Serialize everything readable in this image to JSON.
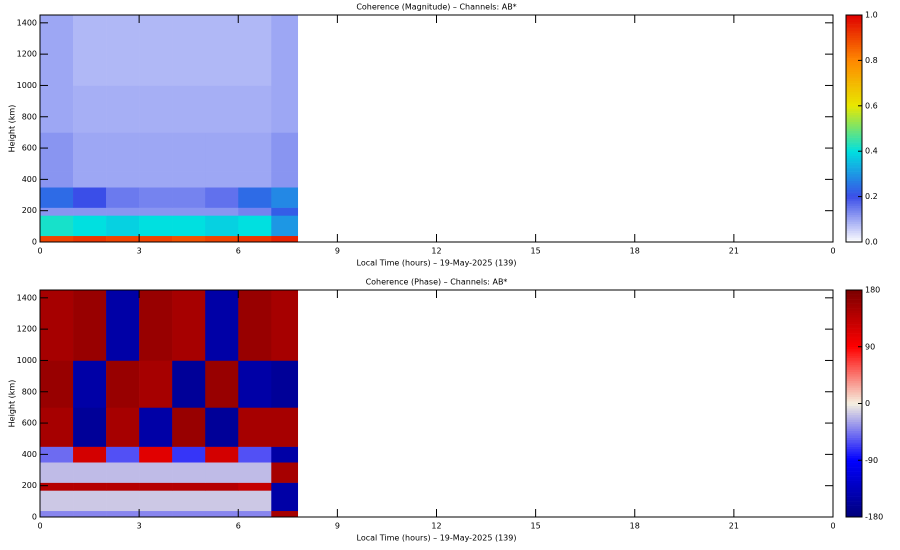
{
  "chart_data": [
    {
      "type": "heatmap",
      "title": "Coherence (Magnitude) – Channels: AB*",
      "xlabel": "Local Time (hours) – 19-May-2025 (139)",
      "ylabel": "Height (km)",
      "x_bins": [
        0,
        1,
        2,
        3,
        4,
        5,
        6,
        7,
        7.8
      ],
      "y_bins": [
        0,
        40,
        170,
        220,
        350,
        450,
        700,
        1000,
        1450
      ],
      "values": [
        [
          0.9,
          0.92,
          0.9,
          0.9,
          0.88,
          0.9,
          0.92,
          0.95
        ],
        [
          0.42,
          0.4,
          0.38,
          0.4,
          0.4,
          0.38,
          0.4,
          0.3
        ],
        [
          0.12,
          0.12,
          0.12,
          0.12,
          0.12,
          0.12,
          0.14,
          0.22
        ],
        [
          0.24,
          0.2,
          0.15,
          0.14,
          0.14,
          0.16,
          0.24,
          0.28
        ],
        [
          0.12,
          0.1,
          0.1,
          0.1,
          0.1,
          0.1,
          0.1,
          0.12
        ],
        [
          0.12,
          0.1,
          0.1,
          0.1,
          0.1,
          0.1,
          0.1,
          0.12
        ],
        [
          0.1,
          0.09,
          0.09,
          0.09,
          0.09,
          0.09,
          0.09,
          0.1
        ],
        [
          0.1,
          0.08,
          0.08,
          0.08,
          0.08,
          0.08,
          0.08,
          0.1
        ]
      ],
      "xlim": [
        0,
        24
      ],
      "xticks": [
        0,
        3,
        6,
        9,
        12,
        15,
        18,
        21,
        {
          "value": 24,
          "label": "0"
        }
      ],
      "ylim": [
        0,
        1450
      ],
      "yticks": [
        0,
        200,
        400,
        600,
        800,
        1000,
        1200,
        1400
      ],
      "clim": [
        0,
        1
      ],
      "cticks": [
        {
          "value": 0,
          "label": "0.0"
        },
        {
          "value": 0.2,
          "label": "0.2"
        },
        {
          "value": 0.4,
          "label": "0.4"
        },
        {
          "value": 0.6,
          "label": "0.6"
        },
        {
          "value": 0.8,
          "label": "0.8"
        },
        {
          "value": 1,
          "label": "1.0"
        }
      ],
      "colorscale": [
        "#ffffff",
        "#3a4ee8",
        "#00e0e0",
        "#e8e800",
        "#ff8800",
        "#e00000"
      ]
    },
    {
      "type": "heatmap",
      "title": "Coherence (Phase) – Channels: AB*",
      "xlabel": "Local Time (hours) – 19-May-2025 (139)",
      "ylabel": "Height (km)",
      "x_bins": [
        0,
        1,
        2,
        3,
        4,
        5,
        6,
        7,
        7.8
      ],
      "y_bins": [
        0,
        40,
        170,
        220,
        350,
        450,
        700,
        1000,
        1450
      ],
      "values": [
        [
          -40,
          -40,
          -40,
          -40,
          -40,
          -40,
          -40,
          150
        ],
        [
          -15,
          -15,
          -15,
          -15,
          -15,
          -15,
          -15,
          -150
        ],
        [
          140,
          140,
          140,
          140,
          140,
          140,
          130,
          -150
        ],
        [
          -20,
          -20,
          -20,
          -20,
          -20,
          -20,
          -20,
          150
        ],
        [
          -50,
          120,
          -60,
          110,
          -70,
          120,
          -60,
          -150
        ],
        [
          150,
          -160,
          150,
          -150,
          160,
          -160,
          150,
          150
        ],
        [
          160,
          -150,
          160,
          150,
          -160,
          160,
          -150,
          -160
        ],
        [
          150,
          160,
          -150,
          160,
          150,
          -150,
          160,
          150
        ]
      ],
      "xlim": [
        0,
        24
      ],
      "xticks": [
        0,
        3,
        6,
        9,
        12,
        15,
        18,
        21,
        {
          "value": 24,
          "label": "0"
        }
      ],
      "ylim": [
        0,
        1450
      ],
      "yticks": [
        0,
        200,
        400,
        600,
        800,
        1000,
        1200,
        1400
      ],
      "clim": [
        -180,
        180
      ],
      "cticks": [
        -180,
        -90,
        0,
        90,
        180
      ],
      "colorscale": [
        "#00007a",
        "#0000ff",
        "#f5f0e0",
        "#ff0000",
        "#7a0000"
      ]
    }
  ]
}
